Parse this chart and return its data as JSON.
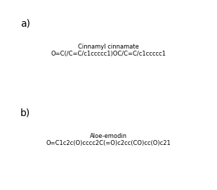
{
  "title_a": "a)",
  "title_b": "b)",
  "smiles_a": "O=C(/C=C/c1ccccc1)OC/C=C/c1ccccc1",
  "smiles_b": "O=C1c2c(O)cccc2C(=O)c2cc(CO)cc(O)c21",
  "background_color": "#ffffff",
  "line_color": "#555555",
  "label_fontsize": 10
}
